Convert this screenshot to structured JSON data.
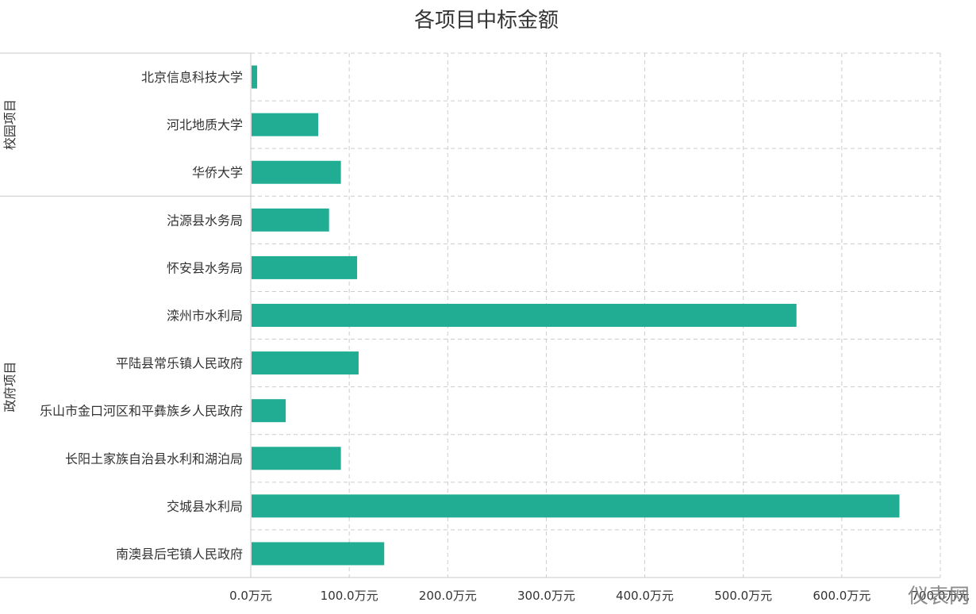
{
  "chart_data": {
    "type": "bar",
    "orientation": "horizontal",
    "title": "各项目中标金额",
    "xlabel": "",
    "ylabel": "",
    "xlim": [
      0,
      700
    ],
    "grid": true,
    "legend": "none",
    "colors": {
      "bar": "#20ad93",
      "grid": "#cccccc",
      "axis": "#c8c8c8",
      "text": "#333333"
    },
    "x_ticks": [
      "0.0万元",
      "100.0万元",
      "200.0万元",
      "300.0万元",
      "400.0万元",
      "500.0万元",
      "600.0万元",
      "700.0万元"
    ],
    "groups": [
      {
        "label": "校园项目",
        "categories": [
          "北京信息科技大学",
          "河北地质大学",
          "华侨大学"
        ]
      },
      {
        "label": "政府项目",
        "categories": [
          "沽源县水务局",
          "怀安县水务局",
          "滦州市水利局",
          "平陆县常乐镇人民政府",
          "乐山市金口河区和平彝族乡人民政府",
          "长阳土家族自治县水利和湖泊局",
          "交城县水利局",
          "南澳县后宅镇人民政府"
        ]
      }
    ],
    "categories": [
      "北京信息科技大学",
      "河北地质大学",
      "华侨大学",
      "沽源县水务局",
      "怀安县水务局",
      "滦州市水利局",
      "平陆县常乐镇人民政府",
      "乐山市金口河区和平彝族乡人民政府",
      "长阳土家族自治县水利和湖泊局",
      "交城县水利局",
      "南澳县后宅镇人民政府"
    ],
    "values": [
      6.5,
      68.5,
      91.5,
      79.5,
      108,
      554,
      109.5,
      35.5,
      91.5,
      658.5,
      135.5
    ]
  },
  "watermark": "仪表网"
}
